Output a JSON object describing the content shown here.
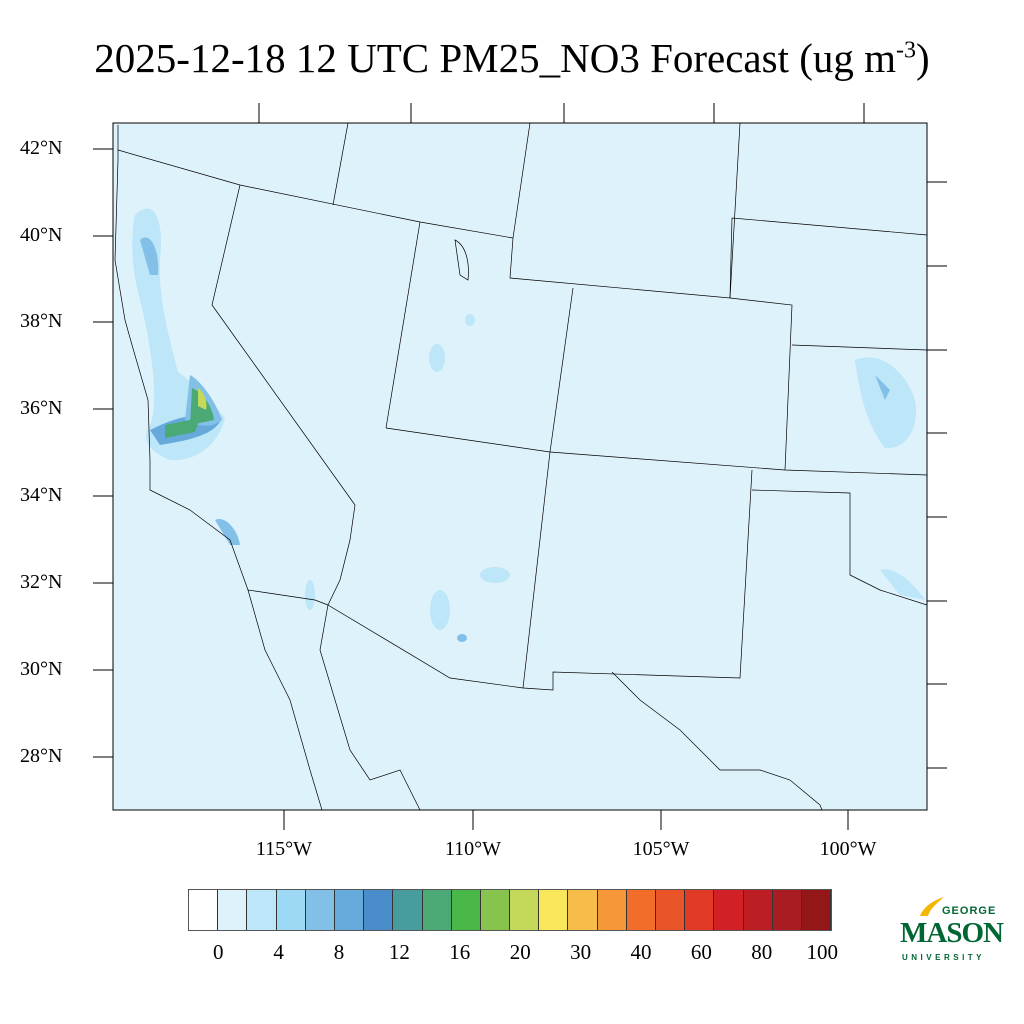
{
  "title": {
    "main": "2025-12-18 12 UTC PM25_NO3 Forecast (ug m",
    "superscript": "-3",
    "close": ")"
  },
  "map": {
    "background_color": "#def2fc",
    "lat_labels": [
      "42°N",
      "40°N",
      "38°N",
      "36°N",
      "34°N",
      "32°N",
      "30°N",
      "28°N"
    ],
    "lon_labels": [
      "115°W",
      "110°W",
      "105°W",
      "100°W"
    ]
  },
  "colorbar": {
    "colors": [
      "#ffffff",
      "#def2fc",
      "#bde6f8",
      "#9dd8f5",
      "#82c0e8",
      "#66a9db",
      "#4a8dcb",
      "#479d9e",
      "#4aa974",
      "#4ab749",
      "#86c44e",
      "#c4d95a",
      "#f8e75b",
      "#f6bd4a",
      "#f6983a",
      "#f26c2a",
      "#ea5429",
      "#e03a26",
      "#d22027",
      "#bd1e24",
      "#a81c22",
      "#931619"
    ],
    "labels": [
      "0",
      "4",
      "8",
      "12",
      "16",
      "20",
      "30",
      "40",
      "60",
      "80",
      "100"
    ]
  },
  "logo": {
    "top": "GEORGE",
    "main": "MASON",
    "bottom": "UNIVERSITY"
  }
}
